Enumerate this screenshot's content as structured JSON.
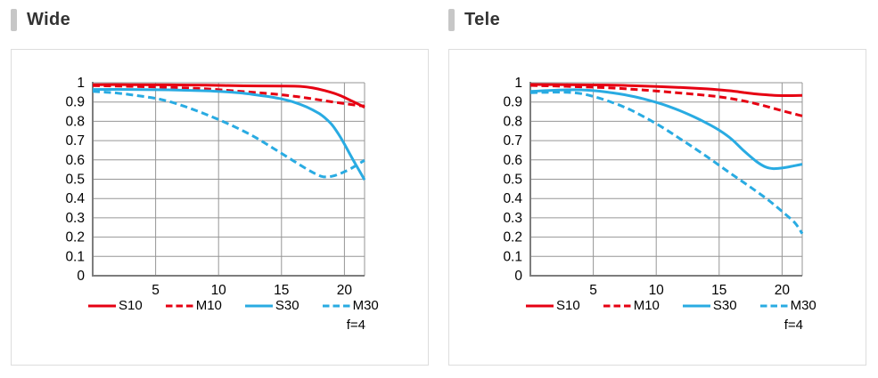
{
  "colors": {
    "series_red": "#e60012",
    "series_blue": "#29abe2",
    "grid": "#969696",
    "axis": "#7d7d7d",
    "panel_border": "#dddddd",
    "title_bar": "#c7c7c7",
    "title_text": "#333333",
    "tick_text": "#000000"
  },
  "chart_data": [
    {
      "type": "line",
      "title": "Wide",
      "annotation": "f=4",
      "xlim": [
        0,
        21.6
      ],
      "ylim": [
        0,
        1
      ],
      "xticks": [
        5,
        10,
        15,
        20
      ],
      "yticks": [
        0,
        0.1,
        0.2,
        0.3,
        0.4,
        0.5,
        0.6,
        0.7,
        0.8,
        0.9,
        1
      ],
      "grid": true,
      "legend_position": "bottom",
      "series": [
        {
          "name": "S10",
          "color": "#e60012",
          "style": "solid",
          "points": [
            [
              0,
              0.99
            ],
            [
              3,
              0.99
            ],
            [
              6,
              0.989
            ],
            [
              9,
              0.987
            ],
            [
              12,
              0.984
            ],
            [
              15,
              0.983
            ],
            [
              16.5,
              0.981
            ],
            [
              17.5,
              0.973
            ],
            [
              18.5,
              0.958
            ],
            [
              19.5,
              0.938
            ],
            [
              20.5,
              0.908
            ],
            [
              21.6,
              0.873
            ]
          ]
        },
        {
          "name": "M10",
          "color": "#e60012",
          "style": "dashed",
          "points": [
            [
              0,
              0.985
            ],
            [
              3,
              0.981
            ],
            [
              6,
              0.976
            ],
            [
              9,
              0.968
            ],
            [
              12,
              0.954
            ],
            [
              14,
              0.944
            ],
            [
              16,
              0.93
            ],
            [
              17,
              0.921
            ],
            [
              18,
              0.911
            ],
            [
              19,
              0.901
            ],
            [
              20,
              0.892
            ],
            [
              21,
              0.883
            ],
            [
              21.6,
              0.879
            ]
          ]
        },
        {
          "name": "S30",
          "color": "#29abe2",
          "style": "solid",
          "points": [
            [
              0,
              0.965
            ],
            [
              3,
              0.965
            ],
            [
              6,
              0.963
            ],
            [
              9,
              0.958
            ],
            [
              11,
              0.951
            ],
            [
              12,
              0.945
            ],
            [
              13,
              0.937
            ],
            [
              14,
              0.928
            ],
            [
              15,
              0.916
            ],
            [
              16,
              0.899
            ],
            [
              17,
              0.874
            ],
            [
              18,
              0.84
            ],
            [
              18.5,
              0.815
            ],
            [
              19,
              0.783
            ],
            [
              19.5,
              0.737
            ],
            [
              20,
              0.682
            ],
            [
              20.5,
              0.622
            ],
            [
              21,
              0.565
            ],
            [
              21.6,
              0.497
            ]
          ]
        },
        {
          "name": "M30",
          "color": "#29abe2",
          "style": "dashed",
          "points": [
            [
              0,
              0.955
            ],
            [
              1,
              0.951
            ],
            [
              2,
              0.946
            ],
            [
              3,
              0.938
            ],
            [
              4,
              0.929
            ],
            [
              5,
              0.919
            ],
            [
              6,
              0.904
            ],
            [
              7,
              0.884
            ],
            [
              8,
              0.861
            ],
            [
              9,
              0.836
            ],
            [
              10,
              0.809
            ],
            [
              11,
              0.78
            ],
            [
              12,
              0.749
            ],
            [
              13,
              0.714
            ],
            [
              14,
              0.674
            ],
            [
              15,
              0.634
            ],
            [
              16,
              0.593
            ],
            [
              17,
              0.553
            ],
            [
              17.7,
              0.528
            ],
            [
              18.3,
              0.513
            ],
            [
              19,
              0.515
            ],
            [
              19.7,
              0.53
            ],
            [
              20.5,
              0.555
            ],
            [
              21.6,
              0.598
            ]
          ]
        }
      ]
    },
    {
      "type": "line",
      "title": "Tele",
      "annotation": "f=4",
      "xlim": [
        0,
        21.6
      ],
      "ylim": [
        0,
        1
      ],
      "xticks": [
        5,
        10,
        15,
        20
      ],
      "yticks": [
        0,
        0.1,
        0.2,
        0.3,
        0.4,
        0.5,
        0.6,
        0.7,
        0.8,
        0.9,
        1
      ],
      "grid": true,
      "legend_position": "bottom",
      "series": [
        {
          "name": "S10",
          "color": "#e60012",
          "style": "solid",
          "points": [
            [
              0,
              0.991
            ],
            [
              3,
              0.99
            ],
            [
              6,
              0.988
            ],
            [
              9,
              0.983
            ],
            [
              12,
              0.975
            ],
            [
              14,
              0.968
            ],
            [
              15,
              0.963
            ],
            [
              16,
              0.957
            ],
            [
              17,
              0.949
            ],
            [
              18,
              0.941
            ],
            [
              19,
              0.936
            ],
            [
              20,
              0.933
            ],
            [
              21.6,
              0.934
            ]
          ]
        },
        {
          "name": "M10",
          "color": "#e60012",
          "style": "dashed",
          "points": [
            [
              0,
              0.986
            ],
            [
              3,
              0.981
            ],
            [
              6,
              0.974
            ],
            [
              9,
              0.962
            ],
            [
              12,
              0.946
            ],
            [
              14,
              0.934
            ],
            [
              15,
              0.927
            ],
            [
              16,
              0.917
            ],
            [
              17,
              0.905
            ],
            [
              18,
              0.89
            ],
            [
              19,
              0.873
            ],
            [
              20,
              0.855
            ],
            [
              21,
              0.838
            ],
            [
              21.6,
              0.828
            ]
          ]
        },
        {
          "name": "S30",
          "color": "#29abe2",
          "style": "solid",
          "points": [
            [
              0,
              0.955
            ],
            [
              1.5,
              0.96
            ],
            [
              3,
              0.963
            ],
            [
              4,
              0.963
            ],
            [
              5,
              0.959
            ],
            [
              6,
              0.952
            ],
            [
              7,
              0.943
            ],
            [
              8,
              0.931
            ],
            [
              9,
              0.916
            ],
            [
              10,
              0.898
            ],
            [
              11,
              0.877
            ],
            [
              12,
              0.852
            ],
            [
              13,
              0.823
            ],
            [
              14,
              0.791
            ],
            [
              15,
              0.754
            ],
            [
              16,
              0.707
            ],
            [
              17,
              0.645
            ],
            [
              18,
              0.59
            ],
            [
              18.7,
              0.563
            ],
            [
              19.3,
              0.555
            ],
            [
              20,
              0.558
            ],
            [
              21,
              0.57
            ],
            [
              21.6,
              0.578
            ]
          ]
        },
        {
          "name": "M30",
          "color": "#29abe2",
          "style": "dashed",
          "points": [
            [
              0,
              0.948
            ],
            [
              1,
              0.95
            ],
            [
              2,
              0.951
            ],
            [
              3,
              0.95
            ],
            [
              4,
              0.944
            ],
            [
              5,
              0.929
            ],
            [
              6,
              0.909
            ],
            [
              7,
              0.886
            ],
            [
              8,
              0.858
            ],
            [
              9,
              0.824
            ],
            [
              10,
              0.788
            ],
            [
              11,
              0.748
            ],
            [
              12,
              0.705
            ],
            [
              13,
              0.662
            ],
            [
              14,
              0.618
            ],
            [
              15,
              0.572
            ],
            [
              16,
              0.526
            ],
            [
              17,
              0.481
            ],
            [
              18,
              0.435
            ],
            [
              19,
              0.387
            ],
            [
              20,
              0.333
            ],
            [
              21,
              0.275
            ],
            [
              21.6,
              0.218
            ]
          ]
        }
      ]
    }
  ]
}
